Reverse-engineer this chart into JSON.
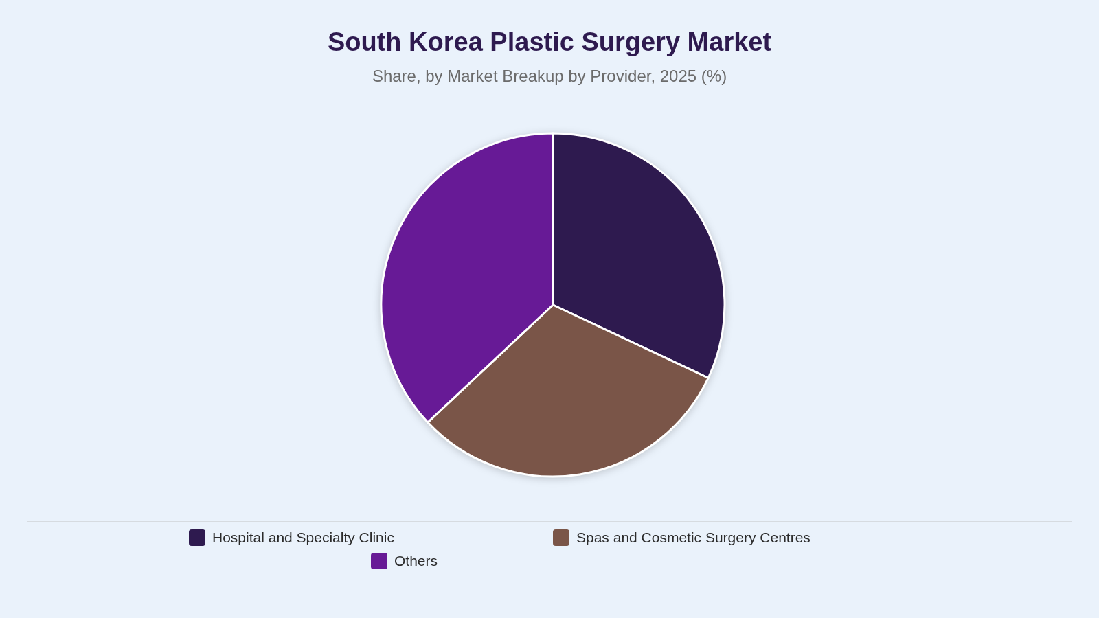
{
  "chart_data": {
    "type": "pie",
    "title": "South Korea Plastic Surgery Market",
    "subtitle": "Share, by Market Breakup by Provider, 2025 (%)",
    "categories": [
      "Hospital and Specialty Clinic",
      "Spas and Cosmetic Surgery Centres",
      "Others"
    ],
    "values": [
      32,
      31,
      37
    ],
    "colors": [
      "#2e1a4f",
      "#7a5548",
      "#671a96"
    ],
    "legend": "bottom"
  }
}
